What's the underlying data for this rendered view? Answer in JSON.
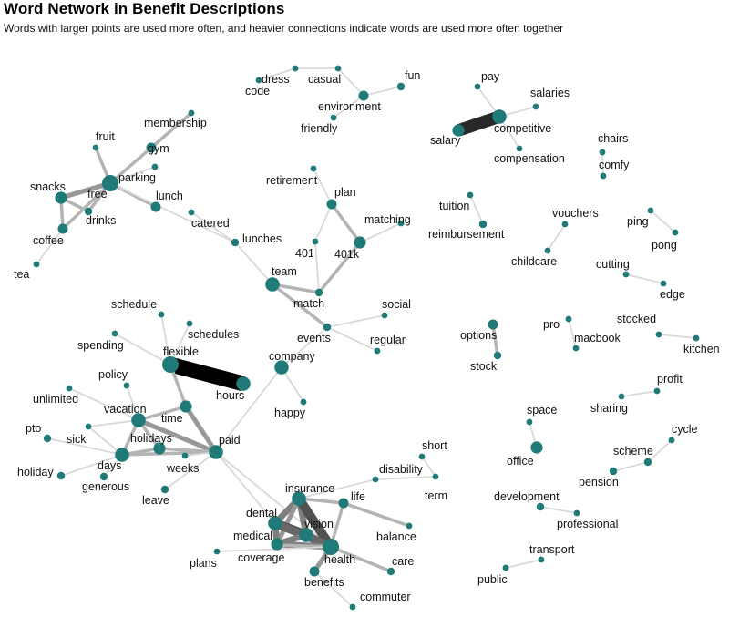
{
  "title": "Word Network in Benefit Descriptions",
  "subtitle": "Words with larger points are used more often, and heavier connections indicate words are used more often together",
  "colors": {
    "node": "#1f7a78",
    "edge_min": "#d9d9d9",
    "edge_max": "#000000",
    "label": "#111111"
  },
  "nodes": [
    {
      "id": "code",
      "label": "code",
      "size": 1
    },
    {
      "id": "dress",
      "label": "dress",
      "size": 1
    },
    {
      "id": "casual",
      "label": "casual",
      "size": 1
    },
    {
      "id": "fun",
      "label": "fun",
      "size": 2
    },
    {
      "id": "environment",
      "label": "environment",
      "size": 3
    },
    {
      "id": "friendly",
      "label": "friendly",
      "size": 1
    },
    {
      "id": "pay",
      "label": "pay",
      "size": 1
    },
    {
      "id": "salaries",
      "label": "salaries",
      "size": 1
    },
    {
      "id": "salary",
      "label": "salary",
      "size": 4
    },
    {
      "id": "competitive",
      "label": "competitive",
      "size": 5
    },
    {
      "id": "compensation",
      "label": "compensation",
      "size": 1
    },
    {
      "id": "chairs",
      "label": "chairs",
      "size": 1
    },
    {
      "id": "comfy",
      "label": "comfy",
      "size": 1
    },
    {
      "id": "fruit",
      "label": "fruit",
      "size": 1
    },
    {
      "id": "membership",
      "label": "membership",
      "size": 1
    },
    {
      "id": "gym",
      "label": "gym",
      "size": 3
    },
    {
      "id": "parking",
      "label": "parking",
      "size": 1
    },
    {
      "id": "snacks",
      "label": "snacks",
      "size": 4
    },
    {
      "id": "free",
      "label": "free",
      "size": 6
    },
    {
      "id": "drinks",
      "label": "drinks",
      "size": 2
    },
    {
      "id": "lunch",
      "label": "lunch",
      "size": 3
    },
    {
      "id": "coffee",
      "label": "coffee",
      "size": 3
    },
    {
      "id": "tea",
      "label": "tea",
      "size": 1
    },
    {
      "id": "catered",
      "label": "catered",
      "size": 1
    },
    {
      "id": "lunches",
      "label": "lunches",
      "size": 2
    },
    {
      "id": "retirement",
      "label": "retirement",
      "size": 1
    },
    {
      "id": "plan",
      "label": "plan",
      "size": 3
    },
    {
      "id": "matching",
      "label": "matching",
      "size": 1
    },
    {
      "id": "n401",
      "label": "401",
      "size": 1
    },
    {
      "id": "n401k",
      "label": "401k",
      "size": 4
    },
    {
      "id": "team",
      "label": "team",
      "size": 5
    },
    {
      "id": "match",
      "label": "match",
      "size": 2
    },
    {
      "id": "tuition",
      "label": "tuition",
      "size": 1
    },
    {
      "id": "reimbursement",
      "label": "reimbursement",
      "size": 2
    },
    {
      "id": "vouchers",
      "label": "vouchers",
      "size": 1
    },
    {
      "id": "childcare",
      "label": "childcare",
      "size": 1
    },
    {
      "id": "ping",
      "label": "ping",
      "size": 1
    },
    {
      "id": "pong",
      "label": "pong",
      "size": 1
    },
    {
      "id": "cutting",
      "label": "cutting",
      "size": 1
    },
    {
      "id": "edge",
      "label": "edge",
      "size": 1
    },
    {
      "id": "schedule",
      "label": "schedule",
      "size": 1
    },
    {
      "id": "schedules",
      "label": "schedules",
      "size": 1
    },
    {
      "id": "social",
      "label": "social",
      "size": 1
    },
    {
      "id": "events",
      "label": "events",
      "size": 2
    },
    {
      "id": "spending",
      "label": "spending",
      "size": 1
    },
    {
      "id": "regular",
      "label": "regular",
      "size": 1
    },
    {
      "id": "flexible",
      "label": "flexible",
      "size": 6
    },
    {
      "id": "company",
      "label": "company",
      "size": 5
    },
    {
      "id": "options",
      "label": "options",
      "size": 3
    },
    {
      "id": "stock",
      "label": "stock",
      "size": 2
    },
    {
      "id": "pro",
      "label": "pro",
      "size": 1
    },
    {
      "id": "macbook",
      "label": "macbook",
      "size": 1
    },
    {
      "id": "stocked",
      "label": "stocked",
      "size": 1
    },
    {
      "id": "kitchen",
      "label": "kitchen",
      "size": 1
    },
    {
      "id": "policy",
      "label": "policy",
      "size": 1
    },
    {
      "id": "hours",
      "label": "hours",
      "size": 5
    },
    {
      "id": "unlimited",
      "label": "unlimited",
      "size": 1
    },
    {
      "id": "happy",
      "label": "happy",
      "size": 1
    },
    {
      "id": "profit",
      "label": "profit",
      "size": 1
    },
    {
      "id": "sharing",
      "label": "sharing",
      "size": 1
    },
    {
      "id": "vacation",
      "label": "vacation",
      "size": 5
    },
    {
      "id": "time",
      "label": "time",
      "size": 4
    },
    {
      "id": "space",
      "label": "space",
      "size": 1
    },
    {
      "id": "pto",
      "label": "pto",
      "size": 2
    },
    {
      "id": "sick",
      "label": "sick",
      "size": 1
    },
    {
      "id": "holidays",
      "label": "holidays",
      "size": 4
    },
    {
      "id": "paid",
      "label": "paid",
      "size": 5
    },
    {
      "id": "cycle",
      "label": "cycle",
      "size": 1
    },
    {
      "id": "days",
      "label": "days",
      "size": 5
    },
    {
      "id": "office",
      "label": "office",
      "size": 4
    },
    {
      "id": "short",
      "label": "short",
      "size": 1
    },
    {
      "id": "scheme",
      "label": "scheme",
      "size": 2
    },
    {
      "id": "holiday",
      "label": "holiday",
      "size": 2
    },
    {
      "id": "weeks",
      "label": "weeks",
      "size": 1
    },
    {
      "id": "disability",
      "label": "disability",
      "size": 1
    },
    {
      "id": "term",
      "label": "term",
      "size": 1
    },
    {
      "id": "generous",
      "label": "generous",
      "size": 2
    },
    {
      "id": "pension",
      "label": "pension",
      "size": 2
    },
    {
      "id": "leave",
      "label": "leave",
      "size": 2
    },
    {
      "id": "insurance",
      "label": "insurance",
      "size": 5
    },
    {
      "id": "life",
      "label": "life",
      "size": 3
    },
    {
      "id": "development",
      "label": "development",
      "size": 2
    },
    {
      "id": "dental",
      "label": "dental",
      "size": 5
    },
    {
      "id": "vision",
      "label": "vision",
      "size": 5
    },
    {
      "id": "professional",
      "label": "professional",
      "size": 1
    },
    {
      "id": "medical",
      "label": "medical",
      "size": 4
    },
    {
      "id": "balance",
      "label": "balance",
      "size": 1
    },
    {
      "id": "transport",
      "label": "transport",
      "size": 1
    },
    {
      "id": "coverage",
      "label": "coverage",
      "size": 3
    },
    {
      "id": "health",
      "label": "health",
      "size": 6
    },
    {
      "id": "plans",
      "label": "plans",
      "size": 1
    },
    {
      "id": "care",
      "label": "care",
      "size": 2
    },
    {
      "id": "public",
      "label": "public",
      "size": 1
    },
    {
      "id": "benefits",
      "label": "benefits",
      "size": 3
    },
    {
      "id": "commuter",
      "label": "commuter",
      "size": 1
    }
  ],
  "edges": [
    {
      "source": "code",
      "target": "dress",
      "weight": 1
    },
    {
      "source": "dress",
      "target": "casual",
      "weight": 1
    },
    {
      "source": "casual",
      "target": "environment",
      "weight": 1
    },
    {
      "source": "environment",
      "target": "fun",
      "weight": 1
    },
    {
      "source": "environment",
      "target": "friendly",
      "weight": 1
    },
    {
      "source": "salary",
      "target": "competitive",
      "weight": 8
    },
    {
      "source": "pay",
      "target": "competitive",
      "weight": 1
    },
    {
      "source": "competitive",
      "target": "salaries",
      "weight": 1
    },
    {
      "source": "competitive",
      "target": "compensation",
      "weight": 1
    },
    {
      "source": "chairs",
      "target": "comfy",
      "weight": 1
    },
    {
      "source": "fruit",
      "target": "free",
      "weight": 2
    },
    {
      "source": "membership",
      "target": "gym",
      "weight": 2
    },
    {
      "source": "gym",
      "target": "free",
      "weight": 2
    },
    {
      "source": "parking",
      "target": "free",
      "weight": 1
    },
    {
      "source": "snacks",
      "target": "free",
      "weight": 3
    },
    {
      "source": "snacks",
      "target": "drinks",
      "weight": 2
    },
    {
      "source": "snacks",
      "target": "coffee",
      "weight": 2
    },
    {
      "source": "free",
      "target": "drinks",
      "weight": 2
    },
    {
      "source": "free",
      "target": "coffee",
      "weight": 2
    },
    {
      "source": "free",
      "target": "lunch",
      "weight": 2
    },
    {
      "source": "coffee",
      "target": "tea",
      "weight": 1
    },
    {
      "source": "free",
      "target": "lunches",
      "weight": 1
    },
    {
      "source": "catered",
      "target": "lunches",
      "weight": 1
    },
    {
      "source": "lunches",
      "target": "team",
      "weight": 1
    },
    {
      "source": "retirement",
      "target": "plan",
      "weight": 1
    },
    {
      "source": "plan",
      "target": "n401",
      "weight": 1
    },
    {
      "source": "plan",
      "target": "n401k",
      "weight": 2
    },
    {
      "source": "matching",
      "target": "n401k",
      "weight": 1
    },
    {
      "source": "n401k",
      "target": "match",
      "weight": 2
    },
    {
      "source": "n401",
      "target": "match",
      "weight": 1
    },
    {
      "source": "team",
      "target": "match",
      "weight": 2
    },
    {
      "source": "team",
      "target": "events",
      "weight": 2
    },
    {
      "source": "tuition",
      "target": "reimbursement",
      "weight": 1
    },
    {
      "source": "vouchers",
      "target": "childcare",
      "weight": 1
    },
    {
      "source": "ping",
      "target": "pong",
      "weight": 1
    },
    {
      "source": "cutting",
      "target": "edge",
      "weight": 1
    },
    {
      "source": "social",
      "target": "events",
      "weight": 1
    },
    {
      "source": "events",
      "target": "regular",
      "weight": 1
    },
    {
      "source": "events",
      "target": "company",
      "weight": 1
    },
    {
      "source": "schedule",
      "target": "flexible",
      "weight": 1
    },
    {
      "source": "schedules",
      "target": "flexible",
      "weight": 1
    },
    {
      "source": "spending",
      "target": "flexible",
      "weight": 1
    },
    {
      "source": "flexible",
      "target": "hours",
      "weight": 10
    },
    {
      "source": "flexible",
      "target": "time",
      "weight": 2
    },
    {
      "source": "company",
      "target": "paid",
      "weight": 1
    },
    {
      "source": "company",
      "target": "happy",
      "weight": 1
    },
    {
      "source": "options",
      "target": "stock",
      "weight": 2
    },
    {
      "source": "pro",
      "target": "macbook",
      "weight": 1
    },
    {
      "source": "stocked",
      "target": "kitchen",
      "weight": 1
    },
    {
      "source": "policy",
      "target": "vacation",
      "weight": 1
    },
    {
      "source": "unlimited",
      "target": "vacation",
      "weight": 1
    },
    {
      "source": "vacation",
      "target": "time",
      "weight": 2
    },
    {
      "source": "vacation",
      "target": "paid",
      "weight": 3
    },
    {
      "source": "vacation",
      "target": "days",
      "weight": 2
    },
    {
      "source": "vacation",
      "target": "holidays",
      "weight": 2
    },
    {
      "source": "vacation",
      "target": "sick",
      "weight": 1
    },
    {
      "source": "time",
      "target": "paid",
      "weight": 3
    },
    {
      "source": "pto",
      "target": "days",
      "weight": 1
    },
    {
      "source": "sick",
      "target": "days",
      "weight": 1
    },
    {
      "source": "holidays",
      "target": "paid",
      "weight": 2
    },
    {
      "source": "days",
      "target": "paid",
      "weight": 2
    },
    {
      "source": "days",
      "target": "holiday",
      "weight": 1
    },
    {
      "source": "days",
      "target": "generous",
      "weight": 1
    },
    {
      "source": "days",
      "target": "holidays",
      "weight": 2
    },
    {
      "source": "weeks",
      "target": "paid",
      "weight": 1
    },
    {
      "source": "leave",
      "target": "paid",
      "weight": 1
    },
    {
      "source": "paid",
      "target": "dental",
      "weight": 1
    },
    {
      "source": "paid",
      "target": "health",
      "weight": 1
    },
    {
      "source": "profit",
      "target": "sharing",
      "weight": 1
    },
    {
      "source": "space",
      "target": "office",
      "weight": 1
    },
    {
      "source": "cycle",
      "target": "scheme",
      "weight": 1
    },
    {
      "source": "scheme",
      "target": "pension",
      "weight": 1
    },
    {
      "source": "short",
      "target": "term",
      "weight": 1
    },
    {
      "source": "disability",
      "target": "term",
      "weight": 1
    },
    {
      "source": "disability",
      "target": "insurance",
      "weight": 1
    },
    {
      "source": "insurance",
      "target": "life",
      "weight": 2
    },
    {
      "source": "insurance",
      "target": "dental",
      "weight": 4
    },
    {
      "source": "insurance",
      "target": "vision",
      "weight": 4
    },
    {
      "source": "insurance",
      "target": "health",
      "weight": 6
    },
    {
      "source": "insurance",
      "target": "medical",
      "weight": 3
    },
    {
      "source": "life",
      "target": "balance",
      "weight": 2
    },
    {
      "source": "life",
      "target": "health",
      "weight": 2
    },
    {
      "source": "dental",
      "target": "vision",
      "weight": 6
    },
    {
      "source": "dental",
      "target": "health",
      "weight": 5
    },
    {
      "source": "dental",
      "target": "medical",
      "weight": 4
    },
    {
      "source": "vision",
      "target": "health",
      "weight": 5
    },
    {
      "source": "medical",
      "target": "health",
      "weight": 4
    },
    {
      "source": "medical",
      "target": "coverage",
      "weight": 2
    },
    {
      "source": "medical",
      "target": "vision",
      "weight": 4
    },
    {
      "source": "health",
      "target": "coverage",
      "weight": 2
    },
    {
      "source": "health",
      "target": "care",
      "weight": 2
    },
    {
      "source": "health",
      "target": "benefits",
      "weight": 3
    },
    {
      "source": "health",
      "target": "plans",
      "weight": 1
    },
    {
      "source": "benefits",
      "target": "commuter",
      "weight": 1
    },
    {
      "source": "development",
      "target": "professional",
      "weight": 1
    },
    {
      "source": "transport",
      "target": "public",
      "weight": 1
    }
  ]
}
